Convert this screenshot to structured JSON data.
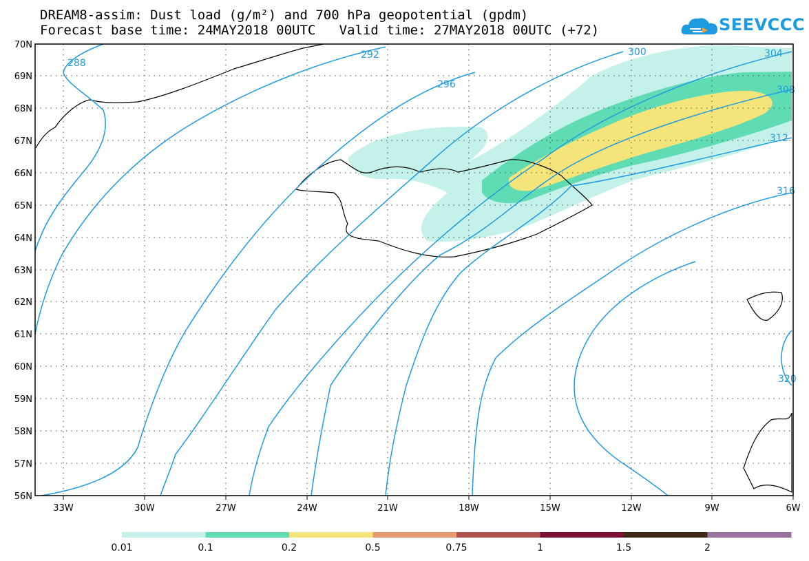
{
  "header": {
    "title_line1": "DREAM8-assim: Dust load (g/m²) and 700 hPa geopotential (gpdm)",
    "title_line2": "Forecast base time: 24MAY2018 00UTC   Valid time: 27MAY2018 00UTC (+72)"
  },
  "logo": {
    "text": "SEEVCCC",
    "icon": "cloud-icon",
    "color": "#1e9be0"
  },
  "map": {
    "lat_range": [
      56,
      70
    ],
    "lon_range": [
      -34.5,
      -6
    ],
    "lat_labels": [
      "70N",
      "69N",
      "68N",
      "67N",
      "66N",
      "65N",
      "64N",
      "63N",
      "62N",
      "61N",
      "60N",
      "59N",
      "58N",
      "57N",
      "56N"
    ],
    "lon_labels": [
      "33W",
      "30W",
      "27W",
      "24W",
      "21W",
      "18W",
      "15W",
      "12W",
      "9W",
      "6W"
    ],
    "contour_color": "#1e9be0",
    "contour_labels": [
      "288",
      "292",
      "296",
      "300",
      "304",
      "308",
      "312",
      "316",
      "320"
    ]
  },
  "legend": {
    "colors": [
      "#c4f2ea",
      "#5fdcb4",
      "#f5e47a",
      "#e59a6f",
      "#b25250",
      "#7e0f34",
      "#3d2a16",
      "#9a72a0"
    ],
    "labels": [
      "0.01",
      "0.1",
      "0.2",
      "0.5",
      "0.75",
      "1",
      "1.5",
      "2"
    ]
  }
}
